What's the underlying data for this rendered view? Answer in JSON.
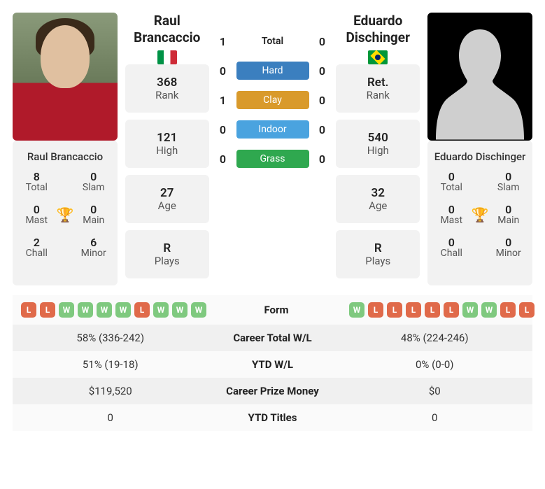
{
  "player1": {
    "name": "Raul Brancaccio",
    "first": "Raul",
    "last": "Brancaccio",
    "flag": "it",
    "rank": "368",
    "rank_label": "Rank",
    "high": "121",
    "high_label": "High",
    "age": "27",
    "age_label": "Age",
    "plays": "R",
    "plays_label": "Plays",
    "titles": {
      "total": "8",
      "slam": "0",
      "mast": "0",
      "main": "0",
      "chall": "2",
      "minor": "6"
    },
    "form": [
      "L",
      "L",
      "W",
      "W",
      "W",
      "W",
      "L",
      "W",
      "W",
      "W"
    ],
    "career_wl": "58% (336-242)",
    "ytd_wl": "51% (19-18)",
    "prize": "$119,520",
    "ytd_titles": "0"
  },
  "player2": {
    "name": "Eduardo Dischinger",
    "first": "Eduardo",
    "last": "Dischinger",
    "flag": "br",
    "rank": "Ret.",
    "rank_label": "Rank",
    "high": "540",
    "high_label": "High",
    "age": "32",
    "age_label": "Age",
    "plays": "R",
    "plays_label": "Plays",
    "titles": {
      "total": "0",
      "slam": "0",
      "mast": "0",
      "main": "0",
      "chall": "0",
      "minor": "0"
    },
    "form": [
      "W",
      "L",
      "L",
      "L",
      "L",
      "L",
      "W",
      "W",
      "L",
      "L"
    ],
    "career_wl": "48% (224-246)",
    "ytd_wl": "0% (0-0)",
    "prize": "$0",
    "ytd_titles": "0"
  },
  "title_labels": {
    "total": "Total",
    "slam": "Slam",
    "mast": "Mast",
    "main": "Main",
    "chall": "Chall",
    "minor": "Minor"
  },
  "h2h": {
    "total": {
      "p1": "1",
      "p2": "0",
      "label": "Total"
    },
    "hard": {
      "p1": "0",
      "p2": "0",
      "label": "Hard",
      "color": "#3b7fbf"
    },
    "clay": {
      "p1": "1",
      "p2": "0",
      "label": "Clay",
      "color": "#d99a2b"
    },
    "indoor": {
      "p1": "0",
      "p2": "0",
      "label": "Indoor",
      "color": "#4aa3df"
    },
    "grass": {
      "p1": "0",
      "p2": "0",
      "label": "Grass",
      "color": "#2fa84f"
    }
  },
  "cmp_labels": {
    "form": "Form",
    "career_wl": "Career Total W/L",
    "ytd_wl": "YTD W/L",
    "prize": "Career Prize Money",
    "ytd_titles": "YTD Titles"
  },
  "colors": {
    "win": "#7fc97f",
    "loss": "#e06a4a",
    "card_bg": "#f2f2f2"
  }
}
